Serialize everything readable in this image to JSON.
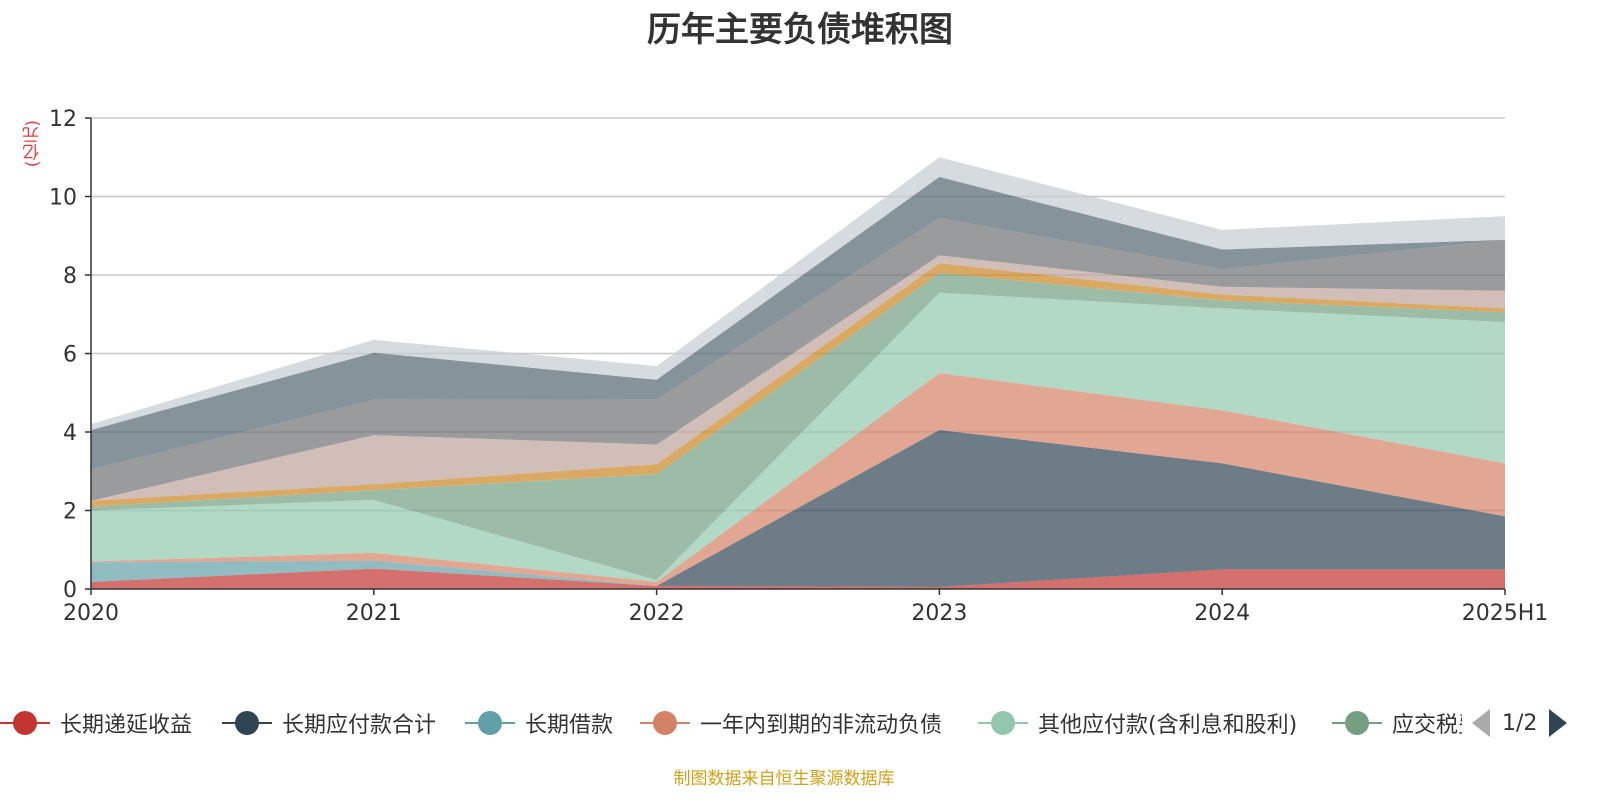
{
  "title": "历年主要负债堆积图",
  "unit": "(亿元)",
  "source": "制图数据来自恒生聚源数据库",
  "pager": {
    "text": "1/2"
  },
  "legend": [
    {
      "label": "长期递延收益",
      "color": "#c23531"
    },
    {
      "label": "长期应付款合计",
      "color": "#2f4554"
    },
    {
      "label": "长期借款",
      "color": "#61a0a8"
    },
    {
      "label": "一年内到期的非流动负债",
      "color": "#d48265"
    },
    {
      "label": "其他应付款(含利息和股利)",
      "color": "#91c7ae"
    },
    {
      "label": "应交税费",
      "color": "#749f83"
    }
  ],
  "chart_data": {
    "type": "area",
    "stacked": true,
    "title": "历年主要负债堆积图",
    "ylabel": "(亿元)",
    "categories": [
      "2020",
      "2021",
      "2022",
      "2023",
      "2024",
      "2025H1"
    ],
    "ylim": [
      0,
      12
    ],
    "yticks": [
      0,
      2,
      4,
      6,
      8,
      10,
      12
    ],
    "grid": true,
    "legend_position": "bottom",
    "series": [
      {
        "name": "长期递延收益",
        "color": "#c23531",
        "values": [
          0.18,
          0.52,
          0.08,
          0.05,
          0.5,
          0.5
        ]
      },
      {
        "name": "长期应付款合计",
        "color": "#2f4554",
        "values": [
          0.0,
          0.0,
          0.0,
          4.0,
          2.7,
          1.35
        ]
      },
      {
        "name": "长期借款",
        "color": "#61a0a8",
        "values": [
          0.5,
          0.2,
          0.0,
          0.0,
          0.0,
          0.0
        ]
      },
      {
        "name": "一年内到期的非流动负债",
        "color": "#d48265",
        "values": [
          0.02,
          0.2,
          0.1,
          1.45,
          1.35,
          1.35
        ]
      },
      {
        "name": "其他应付款(含利息和股利)",
        "color": "#91c7ae",
        "values": [
          1.3,
          1.35,
          0.05,
          2.05,
          2.6,
          3.6
        ]
      },
      {
        "color": "#749f83",
        "values": [
          0.1,
          0.25,
          2.7,
          0.5,
          0.2,
          0.25
        ]
      },
      {
        "color": "#ca8622",
        "values": [
          0.15,
          0.15,
          0.25,
          0.25,
          0.15,
          0.1
        ]
      },
      {
        "color": "#bda29a",
        "values": [
          0.0,
          1.25,
          0.5,
          0.2,
          0.2,
          0.45
        ]
      },
      {
        "color": "#6e7074",
        "values": [
          0.8,
          0.9,
          1.15,
          0.95,
          0.45,
          1.3
        ]
      },
      {
        "color": "#546570",
        "values": [
          1.0,
          1.2,
          0.5,
          1.05,
          0.5,
          0.0
        ]
      },
      {
        "color": "#c4ccd3",
        "values": [
          0.15,
          0.33,
          0.35,
          0.5,
          0.5,
          0.6
        ]
      }
    ]
  }
}
